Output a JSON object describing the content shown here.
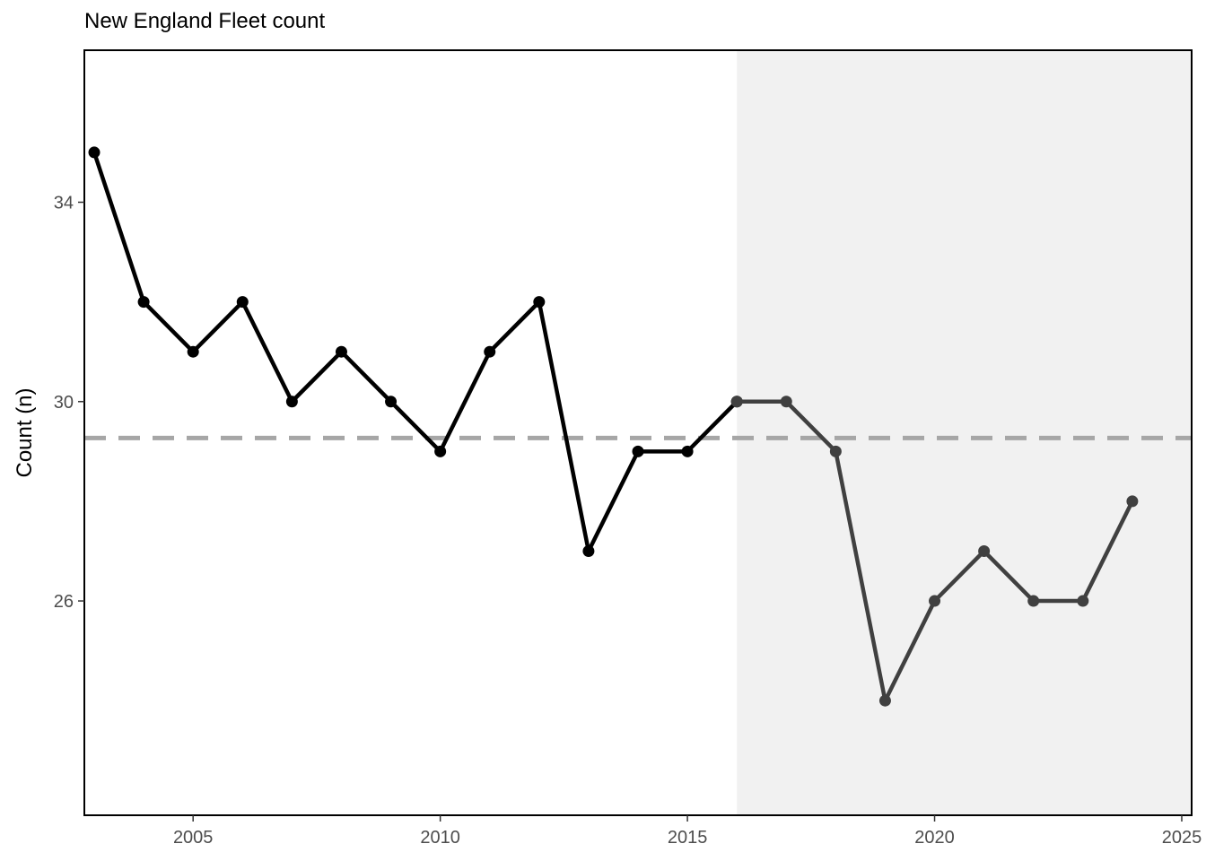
{
  "chart_data": {
    "type": "line",
    "title": "New England Fleet count",
    "xlabel": "",
    "ylabel": "Count (n)",
    "xlim": [
      2002.8,
      2025.2
    ],
    "ylim": [
      21.7,
      37.05
    ],
    "x_ticks": [
      2005,
      2010,
      2015,
      2020,
      2025
    ],
    "y_ticks": [
      26,
      30,
      34
    ],
    "grid": false,
    "mean_line": {
      "value": 29.27,
      "style": "dashed",
      "color": "#a6a6a6"
    },
    "shaded_region": {
      "x_start": 2016,
      "x_end": 2025.2,
      "color": "#f1f1f1"
    },
    "series": [
      {
        "color": "#000000",
        "x": [
          2003,
          2004,
          2005,
          2006,
          2007,
          2008,
          2009,
          2010,
          2011,
          2012,
          2013,
          2014,
          2015,
          2016
        ],
        "y": [
          35,
          32,
          31,
          32,
          30,
          31,
          30,
          29,
          31,
          32,
          27,
          29,
          29,
          30
        ]
      },
      {
        "color": "#404040",
        "x": [
          2016,
          2017,
          2018,
          2019,
          2020,
          2021,
          2022,
          2023,
          2024
        ],
        "y": [
          30,
          30,
          29,
          24,
          26,
          27,
          26,
          26,
          28
        ]
      }
    ]
  }
}
